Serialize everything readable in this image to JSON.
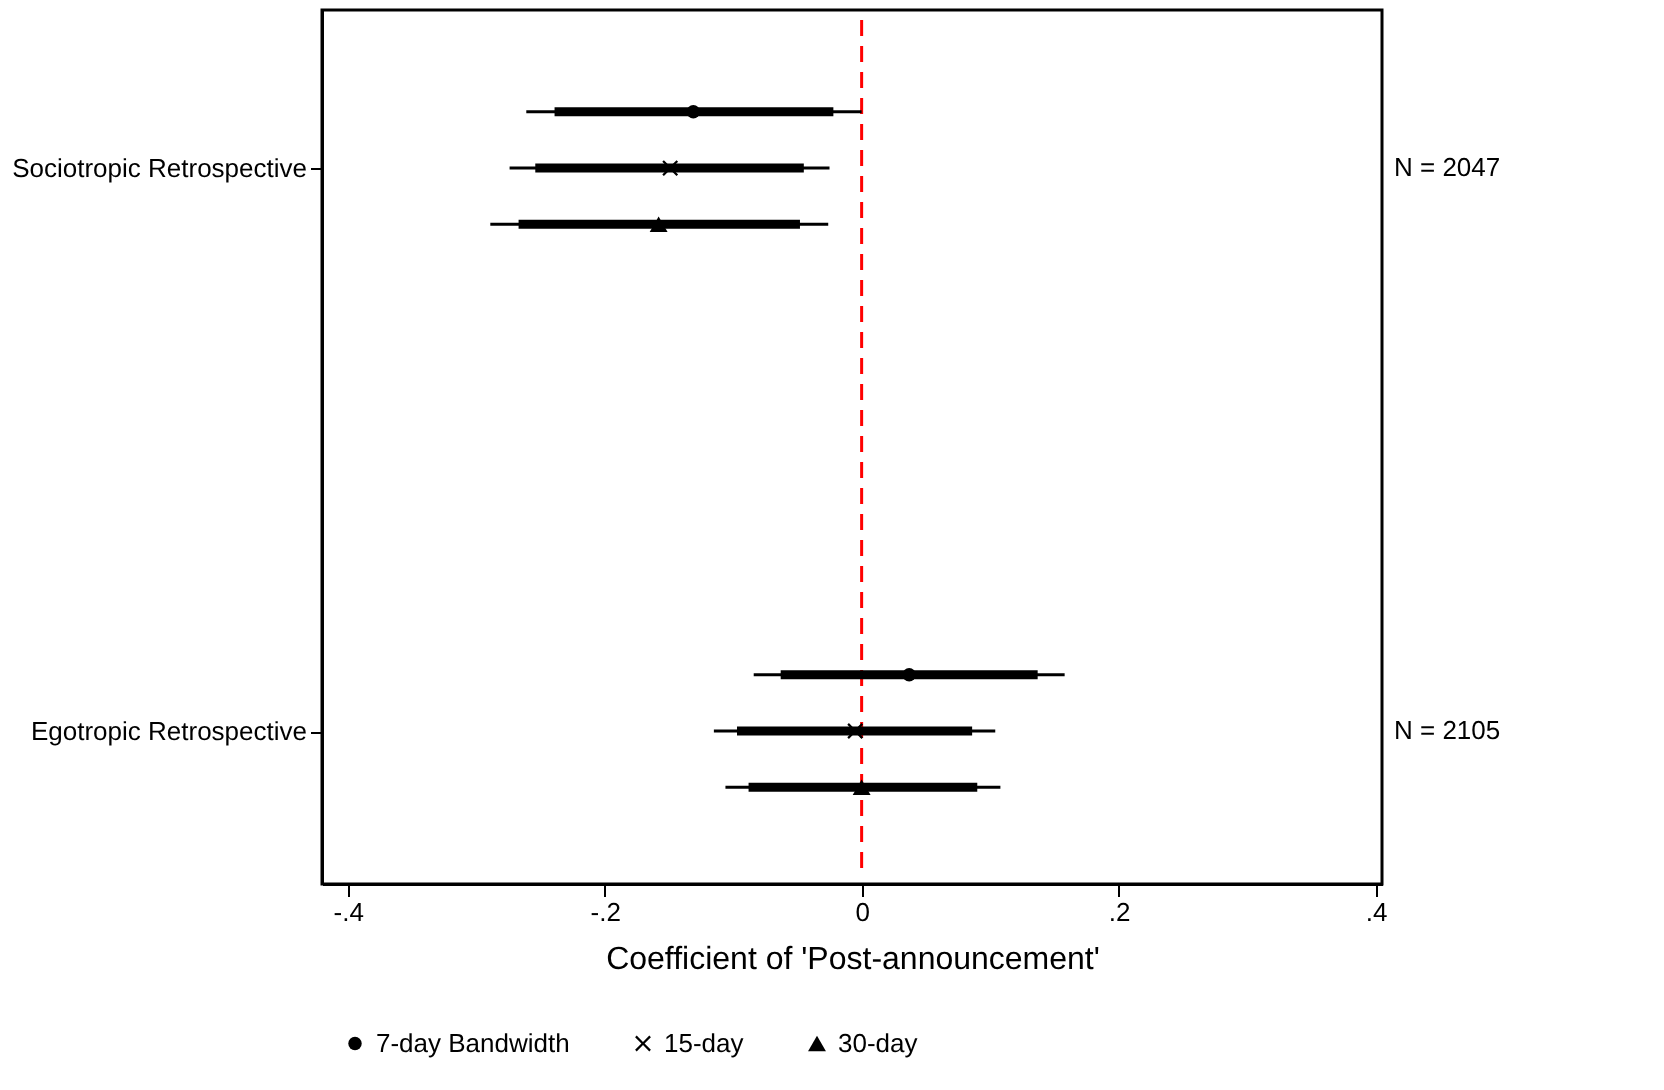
{
  "chart_data": {
    "type": "scatter",
    "orientation": "horizontal",
    "xlabel": "Coefficient of 'Post-announcement'",
    "categories": [
      null,
      "Sociotropic Retrospective",
      null,
      null,
      null,
      null,
      null,
      null,
      null,
      null,
      null,
      "Egotropic Retrospective",
      null
    ],
    "y2_categories": [
      null,
      "N = 2047",
      null,
      null,
      null,
      null,
      null,
      null,
      null,
      null,
      null,
      "N = 2105",
      null
    ],
    "series": [
      {
        "type": "bar",
        "color": "#000000",
        "base": [
          -0.239,
          null,
          null,
          null,
          null,
          null,
          null,
          null,
          null,
          null,
          -0.063,
          null,
          null
        ],
        "values": [
          0.217,
          null,
          null,
          null,
          null,
          null,
          null,
          null,
          null,
          null,
          0.2,
          null,
          null
        ]
      },
      {
        "type": "bar",
        "color": "#000000",
        "base": [
          null,
          -0.254,
          null,
          null,
          null,
          null,
          null,
          null,
          null,
          null,
          null,
          -0.097,
          null
        ],
        "values": [
          null,
          0.209,
          null,
          null,
          null,
          null,
          null,
          null,
          null,
          null,
          null,
          0.183,
          null
        ]
      },
      {
        "type": "bar",
        "color": "#000000",
        "base": [
          null,
          null,
          -0.267,
          null,
          null,
          null,
          null,
          null,
          null,
          null,
          null,
          null,
          -0.088
        ],
        "values": [
          null,
          null,
          0.219,
          null,
          null,
          null,
          null,
          null,
          null,
          null,
          null,
          null,
          0.178
        ]
      },
      {
        "name": "7-day Bandwidth",
        "color": "#000000",
        "marker": "circle",
        "values": [
          -0.131,
          null,
          null,
          null,
          null,
          null,
          null,
          null,
          null,
          null,
          0.037,
          null,
          null
        ],
        "errors": [
          [
            -0.261,
            0.0
          ],
          null,
          null,
          null,
          null,
          null,
          null,
          null,
          null,
          null,
          [
            -0.084,
            0.158
          ],
          null,
          null
        ]
      },
      {
        "name": "15-day",
        "color": "#000000",
        "marker": "cross",
        "values": [
          null,
          -0.149,
          null,
          null,
          null,
          null,
          null,
          null,
          null,
          null,
          null,
          -0.005,
          null
        ],
        "errors": [
          null,
          [
            -0.274,
            -0.025
          ],
          null,
          null,
          null,
          null,
          null,
          null,
          null,
          null,
          null,
          [
            -0.115,
            0.104
          ],
          null
        ]
      },
      {
        "name": "30-day",
        "color": "#000000",
        "marker": "triangle",
        "values": [
          null,
          null,
          -0.158,
          null,
          null,
          null,
          null,
          null,
          null,
          null,
          null,
          null,
          0.0
        ],
        "errors": [
          null,
          null,
          [
            -0.289,
            -0.026
          ],
          null,
          null,
          null,
          null,
          null,
          null,
          null,
          null,
          null,
          [
            -0.106,
            0.108
          ]
        ]
      }
    ],
    "xlim": [
      -0.42,
      0.405
    ],
    "xticks": [
      {
        "value": -0.4,
        "label": "-.4"
      },
      {
        "value": -0.2,
        "label": "-.2"
      },
      0,
      {
        "value": 0.2,
        "label": ".2"
      },
      {
        "value": 0.4,
        "label": ".4"
      }
    ],
    "ref_lines": [
      {
        "axis": "x",
        "value": 0,
        "color": "#ff0000",
        "line_style": "dashed"
      }
    ],
    "legend": "bottom",
    "grid": false
  }
}
